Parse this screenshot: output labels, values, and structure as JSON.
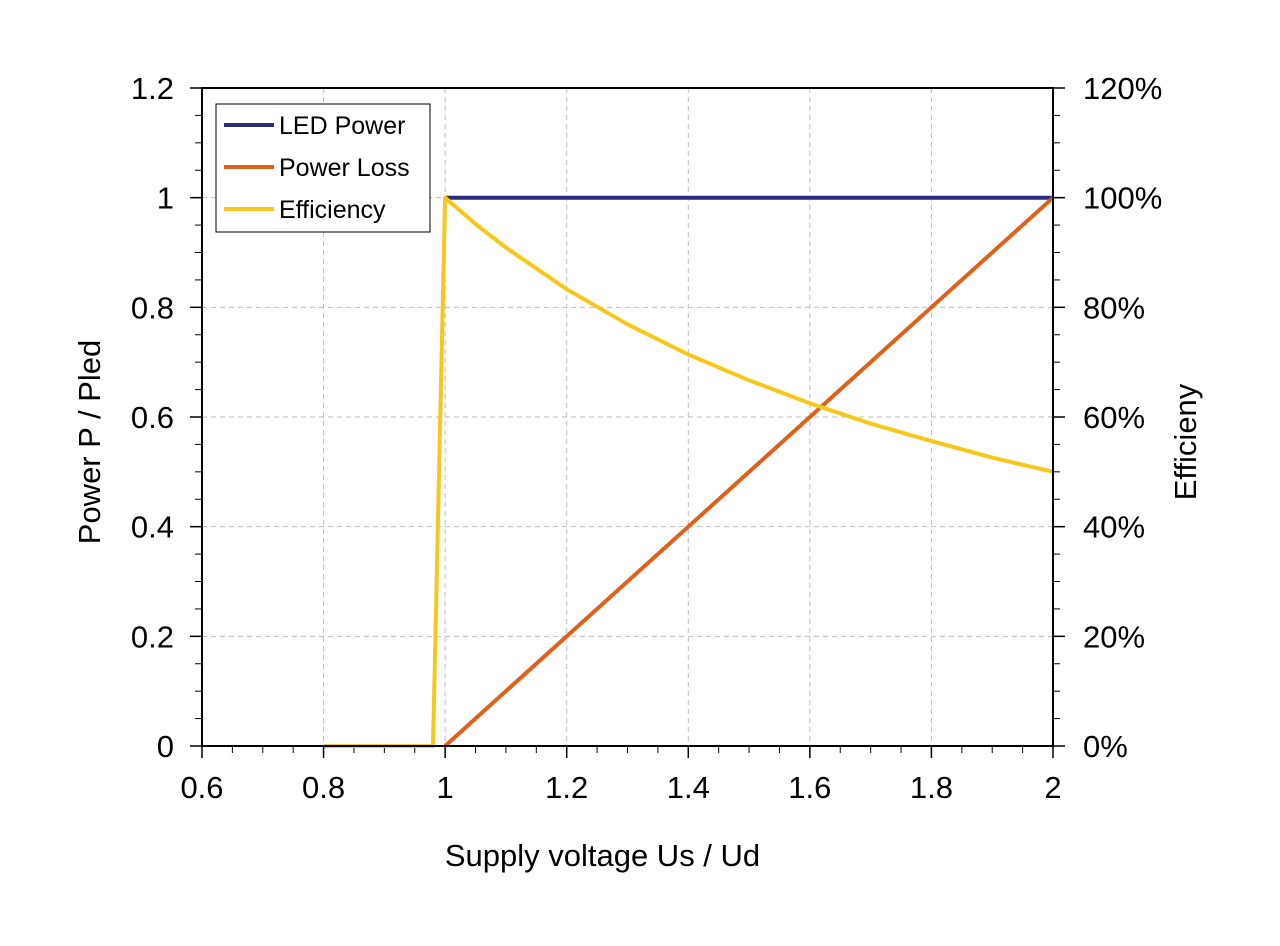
{
  "chart_data": {
    "type": "line",
    "title": "",
    "xlabel": "Supply voltage Us / Ud",
    "ylabel": "Power P / Pled",
    "y2label": "Efficieny",
    "xlim": [
      0.6,
      2
    ],
    "ylim": [
      0,
      1.2
    ],
    "y2lim": [
      0,
      1.2
    ],
    "x_ticks": [
      0.6,
      0.8,
      1,
      1.2,
      1.4,
      1.6,
      1.8,
      2
    ],
    "x_tick_labels": [
      "0.6",
      "0.8",
      "1",
      "1.2",
      "1.4",
      "1.6",
      "1.8",
      "2"
    ],
    "y_ticks": [
      0,
      0.2,
      0.4,
      0.6,
      0.8,
      1,
      1.2
    ],
    "y_tick_labels": [
      "0",
      "0.2",
      "0.4",
      "0.6",
      "0.8",
      "1",
      "1.2"
    ],
    "y2_ticks": [
      0,
      0.2,
      0.4,
      0.6,
      0.8,
      1,
      1.2
    ],
    "y2_tick_labels": [
      "0%",
      "20%",
      "40%",
      "60%",
      "80%",
      "100%",
      "120%"
    ],
    "grid": true,
    "legend_position": "top-left",
    "series": [
      {
        "name": "LED Power",
        "color": "#2b2a7c",
        "x": [
          1.0,
          2.0
        ],
        "y": [
          1.0,
          1.0
        ]
      },
      {
        "name": "Power Loss",
        "color": "#e0601a",
        "x": [
          1.0,
          1.2,
          1.4,
          1.6,
          1.8,
          2.0
        ],
        "y": [
          0,
          0.2,
          0.4,
          0.6,
          0.8,
          1.0
        ]
      },
      {
        "name": "Efficiency",
        "color": "#f7c81c",
        "x": [
          0.8,
          0.98,
          1.0,
          1.05,
          1.1,
          1.2,
          1.3,
          1.4,
          1.5,
          1.6,
          1.7,
          1.8,
          1.9,
          2.0
        ],
        "y": [
          0,
          0,
          1.0,
          0.952,
          0.909,
          0.833,
          0.769,
          0.714,
          0.667,
          0.625,
          0.588,
          0.556,
          0.526,
          0.5
        ]
      }
    ]
  }
}
